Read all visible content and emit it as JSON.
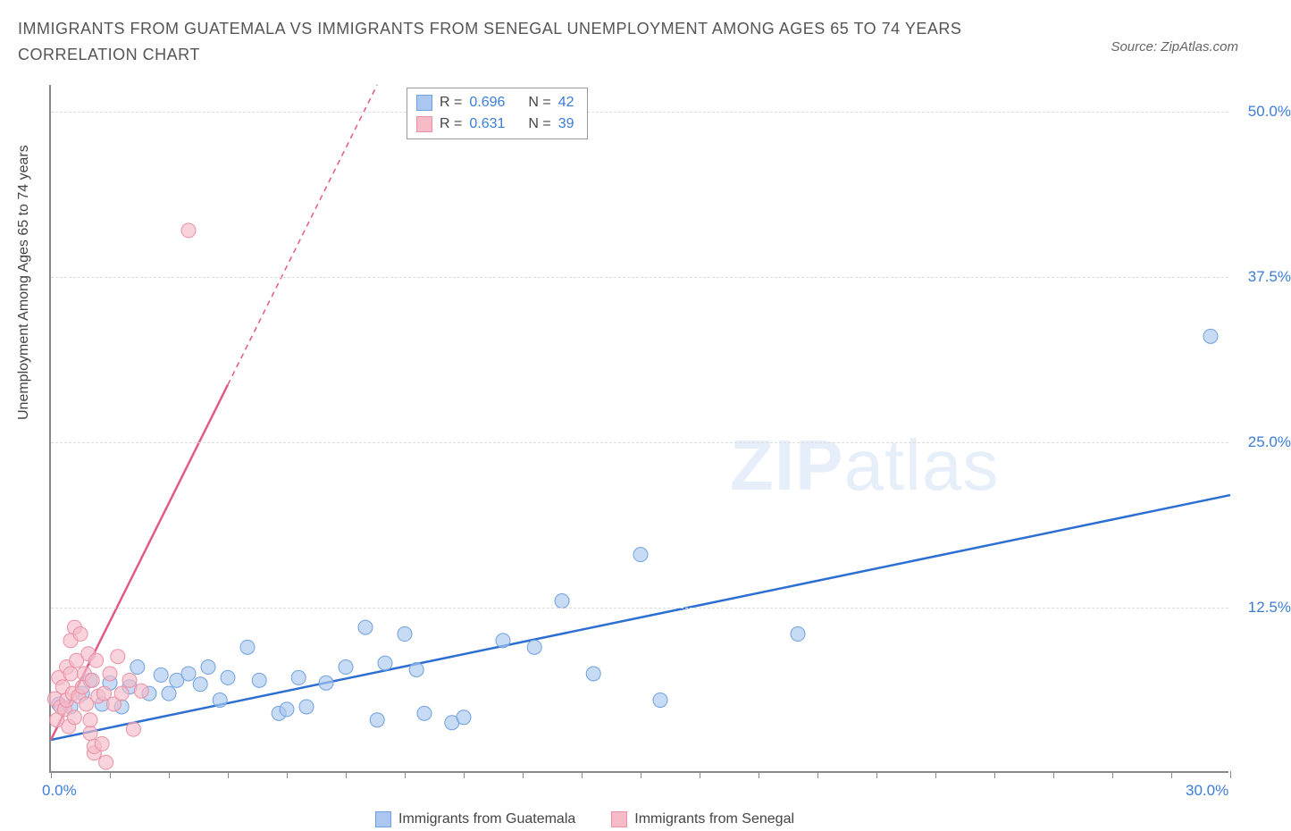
{
  "title": "IMMIGRANTS FROM GUATEMALA VS IMMIGRANTS FROM SENEGAL UNEMPLOYMENT AMONG AGES 65 TO 74 YEARS CORRELATION CHART",
  "source": "Source: ZipAtlas.com",
  "ylabel": "Unemployment Among Ages 65 to 74 years",
  "watermark_a": "ZIP",
  "watermark_b": "atlas",
  "chart": {
    "type": "scatter",
    "background_color": "#ffffff",
    "grid_color": "#dddddd",
    "axis_color": "#888888",
    "xlim": [
      0,
      30
    ],
    "ylim": [
      0,
      52
    ],
    "x_ticks_minor": [
      0,
      1.5,
      3,
      4.5,
      6,
      7.5,
      9,
      10.5,
      12,
      13.5,
      15,
      16.5,
      18,
      19.5,
      21,
      22.5,
      24,
      25.5,
      27,
      28.5,
      30
    ],
    "x_tick_labels": [
      {
        "pos": 0,
        "label": "0.0%"
      },
      {
        "pos": 30,
        "label": "30.0%"
      }
    ],
    "y_tick_labels": [
      {
        "pos": 12.5,
        "label": "12.5%"
      },
      {
        "pos": 25.0,
        "label": "25.0%"
      },
      {
        "pos": 37.5,
        "label": "37.5%"
      },
      {
        "pos": 50.0,
        "label": "50.0%"
      }
    ],
    "y_grid": [
      12.5,
      25.0,
      37.5,
      50.0
    ],
    "label_fontsize": 16,
    "tick_fontsize": 17,
    "tick_color": "#3b7dd8",
    "marker_radius": 8,
    "marker_stroke_width": 1,
    "series": [
      {
        "name": "Immigrants from Guatemala",
        "fill": "#a9c7ef",
        "stroke": "#6fa0df",
        "line_color": "#2d6fd1",
        "line": {
          "x1": 0,
          "y1": 2.5,
          "x2": 30,
          "y2": 21.0,
          "dash_from_x": null
        },
        "points": [
          [
            0.2,
            5.2
          ],
          [
            0.5,
            5.0
          ],
          [
            0.8,
            6.0
          ],
          [
            1.0,
            7.0
          ],
          [
            1.3,
            5.2
          ],
          [
            1.5,
            6.8
          ],
          [
            1.8,
            5.0
          ],
          [
            2.0,
            6.5
          ],
          [
            2.2,
            8.0
          ],
          [
            2.5,
            6.0
          ],
          [
            2.8,
            7.4
          ],
          [
            3.0,
            6.0
          ],
          [
            3.2,
            7.0
          ],
          [
            3.5,
            7.5
          ],
          [
            3.8,
            6.7
          ],
          [
            4.0,
            8.0
          ],
          [
            4.3,
            5.5
          ],
          [
            4.5,
            7.2
          ],
          [
            5.0,
            9.5
          ],
          [
            5.3,
            7.0
          ],
          [
            5.8,
            4.5
          ],
          [
            6.0,
            4.8
          ],
          [
            6.3,
            7.2
          ],
          [
            6.5,
            5.0
          ],
          [
            7.0,
            6.8
          ],
          [
            7.5,
            8.0
          ],
          [
            8.0,
            11.0
          ],
          [
            8.3,
            4.0
          ],
          [
            8.5,
            8.3
          ],
          [
            9.0,
            10.5
          ],
          [
            9.3,
            7.8
          ],
          [
            9.5,
            4.5
          ],
          [
            10.2,
            3.8
          ],
          [
            10.5,
            4.2
          ],
          [
            11.5,
            10.0
          ],
          [
            12.3,
            9.5
          ],
          [
            13.0,
            13.0
          ],
          [
            13.8,
            7.5
          ],
          [
            15.0,
            16.5
          ],
          [
            15.5,
            5.5
          ],
          [
            19.0,
            10.5
          ],
          [
            29.5,
            33.0
          ]
        ]
      },
      {
        "name": "Immigrants from Senegal",
        "fill": "#f5bcc8",
        "stroke": "#ea8fa5",
        "line_color": "#e35a84",
        "line": {
          "x1": 0,
          "y1": 2.5,
          "x2": 8.3,
          "y2": 52,
          "dash_from_x": 4.5
        },
        "points": [
          [
            0.1,
            5.6
          ],
          [
            0.15,
            4.0
          ],
          [
            0.2,
            7.2
          ],
          [
            0.25,
            5.0
          ],
          [
            0.3,
            6.5
          ],
          [
            0.35,
            4.8
          ],
          [
            0.4,
            8.0
          ],
          [
            0.4,
            5.5
          ],
          [
            0.45,
            3.5
          ],
          [
            0.5,
            7.5
          ],
          [
            0.5,
            10.0
          ],
          [
            0.55,
            6.0
          ],
          [
            0.6,
            11.0
          ],
          [
            0.6,
            4.2
          ],
          [
            0.65,
            8.5
          ],
          [
            0.7,
            5.8
          ],
          [
            0.75,
            10.5
          ],
          [
            0.8,
            6.5
          ],
          [
            0.85,
            7.5
          ],
          [
            0.9,
            5.2
          ],
          [
            0.95,
            9.0
          ],
          [
            1.0,
            3.0
          ],
          [
            1.0,
            4.0
          ],
          [
            1.05,
            7.0
          ],
          [
            1.1,
            1.5
          ],
          [
            1.1,
            2.0
          ],
          [
            1.15,
            8.5
          ],
          [
            1.2,
            5.8
          ],
          [
            1.3,
            2.2
          ],
          [
            1.35,
            6.0
          ],
          [
            1.4,
            0.8
          ],
          [
            1.5,
            7.5
          ],
          [
            1.6,
            5.2
          ],
          [
            1.7,
            8.8
          ],
          [
            1.8,
            6.0
          ],
          [
            2.0,
            7.0
          ],
          [
            2.1,
            3.3
          ],
          [
            2.3,
            6.2
          ],
          [
            3.5,
            41.0
          ]
        ]
      }
    ],
    "stats_box": {
      "rows": [
        {
          "swatch_fill": "#a9c7ef",
          "swatch_stroke": "#6fa0df",
          "r_label": "R =",
          "r": "0.696",
          "n_label": "N =",
          "n": "42"
        },
        {
          "swatch_fill": "#f5bcc8",
          "swatch_stroke": "#ea8fa5",
          "r_label": "R =",
          "r": "0.631",
          "n_label": "N =",
          "n": "39"
        }
      ]
    },
    "legend": [
      {
        "swatch_fill": "#a9c7ef",
        "swatch_stroke": "#6fa0df",
        "label": "Immigrants from Guatemala"
      },
      {
        "swatch_fill": "#f5bcc8",
        "swatch_stroke": "#ea8fa5",
        "label": "Immigrants from Senegal"
      }
    ]
  }
}
